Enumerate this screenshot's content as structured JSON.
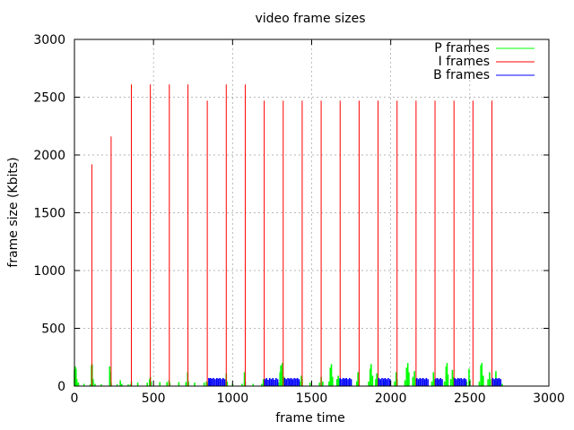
{
  "chart_data": {
    "type": "line",
    "title": "video frame sizes",
    "xlabel": "frame time",
    "ylabel": "frame size (Kbits)",
    "xlim": [
      0,
      3000
    ],
    "ylim": [
      0,
      3000
    ],
    "x_ticks": [
      0,
      500,
      1000,
      1500,
      2000,
      2500,
      3000
    ],
    "y_ticks": [
      0,
      500,
      1000,
      1500,
      2000,
      2500,
      3000
    ],
    "grid": true,
    "legend_position": "top-right",
    "series": [
      {
        "name": "P frames",
        "color": "#00ff00",
        "points": [
          [
            0,
            140
          ],
          [
            5,
            170
          ],
          [
            10,
            150
          ],
          [
            15,
            60
          ],
          [
            25,
            30
          ],
          [
            60,
            20
          ],
          [
            100,
            15
          ],
          [
            108,
            180
          ],
          [
            112,
            190
          ],
          [
            118,
            60
          ],
          [
            130,
            20
          ],
          [
            170,
            15
          ],
          [
            223,
            170
          ],
          [
            227,
            120
          ],
          [
            232,
            30
          ],
          [
            270,
            15
          ],
          [
            290,
            50
          ],
          [
            300,
            20
          ],
          [
            340,
            15
          ],
          [
            355,
            15
          ],
          [
            360,
            40
          ],
          [
            400,
            30
          ],
          [
            460,
            30
          ],
          [
            475,
            60
          ],
          [
            480,
            80
          ],
          [
            485,
            40
          ],
          [
            540,
            35
          ],
          [
            585,
            35
          ],
          [
            598,
            50
          ],
          [
            603,
            30
          ],
          [
            660,
            35
          ],
          [
            705,
            35
          ],
          [
            716,
            120
          ],
          [
            721,
            40
          ],
          [
            760,
            30
          ],
          [
            820,
            30
          ],
          [
            835,
            40
          ],
          [
            840,
            30
          ],
          [
            955,
            25
          ],
          [
            960,
            110
          ],
          [
            966,
            40
          ],
          [
            1000,
            20
          ],
          [
            1060,
            20
          ],
          [
            1075,
            120
          ],
          [
            1080,
            40
          ],
          [
            1130,
            20
          ],
          [
            1185,
            20
          ],
          [
            1195,
            60
          ],
          [
            1200,
            30
          ],
          [
            1290,
            30
          ],
          [
            1300,
            120
          ],
          [
            1305,
            180
          ],
          [
            1315,
            200
          ],
          [
            1325,
            80
          ],
          [
            1360,
            40
          ],
          [
            1425,
            40
          ],
          [
            1435,
            90
          ],
          [
            1440,
            60
          ],
          [
            1490,
            30
          ],
          [
            1550,
            30
          ],
          [
            1560,
            80
          ],
          [
            1570,
            40
          ],
          [
            1610,
            40
          ],
          [
            1618,
            160
          ],
          [
            1625,
            190
          ],
          [
            1632,
            80
          ],
          [
            1660,
            60
          ],
          [
            1668,
            90
          ],
          [
            1672,
            60
          ],
          [
            1700,
            40
          ],
          [
            1785,
            40
          ],
          [
            1793,
            120
          ],
          [
            1798,
            60
          ],
          [
            1860,
            40
          ],
          [
            1870,
            150
          ],
          [
            1876,
            190
          ],
          [
            1885,
            90
          ],
          [
            1905,
            60
          ],
          [
            1912,
            110
          ],
          [
            1916,
            60
          ],
          [
            1960,
            40
          ],
          [
            2025,
            40
          ],
          [
            2035,
            120
          ],
          [
            2040,
            60
          ],
          [
            2090,
            50
          ],
          [
            2100,
            160
          ],
          [
            2108,
            200
          ],
          [
            2115,
            120
          ],
          [
            2140,
            80
          ],
          [
            2150,
            130
          ],
          [
            2160,
            60
          ],
          [
            2260,
            40
          ],
          [
            2270,
            120
          ],
          [
            2275,
            60
          ],
          [
            2340,
            40
          ],
          [
            2350,
            170
          ],
          [
            2356,
            200
          ],
          [
            2362,
            100
          ],
          [
            2380,
            60
          ],
          [
            2390,
            140
          ],
          [
            2396,
            80
          ],
          [
            2480,
            40
          ],
          [
            2495,
            150
          ],
          [
            2500,
            60
          ],
          [
            2560,
            40
          ],
          [
            2570,
            180
          ],
          [
            2576,
            200
          ],
          [
            2585,
            90
          ],
          [
            2615,
            60
          ],
          [
            2625,
            120
          ],
          [
            2630,
            60
          ],
          [
            2665,
            130
          ],
          [
            2670,
            40
          ],
          [
            2705,
            20
          ]
        ]
      },
      {
        "name": "I frames",
        "color": "#ff0000",
        "points": [
          [
            110,
            1920
          ],
          [
            232,
            2160
          ],
          [
            360,
            2610
          ],
          [
            480,
            2610
          ],
          [
            600,
            2610
          ],
          [
            718,
            2610
          ],
          [
            840,
            2470
          ],
          [
            960,
            2610
          ],
          [
            1080,
            2610
          ],
          [
            1200,
            2470
          ],
          [
            1320,
            2470
          ],
          [
            1440,
            2470
          ],
          [
            1560,
            2470
          ],
          [
            1680,
            2470
          ],
          [
            1800,
            2470
          ],
          [
            1920,
            2470
          ],
          [
            2040,
            2470
          ],
          [
            2160,
            2470
          ],
          [
            2280,
            2470
          ],
          [
            2400,
            2470
          ],
          [
            2520,
            2470
          ],
          [
            2640,
            2470
          ]
        ]
      },
      {
        "name": "B frames",
        "color": "#0000ff",
        "points": [
          [
            850,
            70
          ],
          [
            855,
            60
          ],
          [
            860,
            70
          ],
          [
            870,
            65
          ],
          [
            880,
            70
          ],
          [
            890,
            60
          ],
          [
            900,
            70
          ],
          [
            910,
            65
          ],
          [
            920,
            70
          ],
          [
            930,
            60
          ],
          [
            940,
            70
          ],
          [
            950,
            60
          ],
          [
            1205,
            60
          ],
          [
            1215,
            70
          ],
          [
            1225,
            55
          ],
          [
            1235,
            70
          ],
          [
            1245,
            60
          ],
          [
            1255,
            70
          ],
          [
            1265,
            55
          ],
          [
            1275,
            70
          ],
          [
            1285,
            60
          ],
          [
            1330,
            70
          ],
          [
            1340,
            60
          ],
          [
            1350,
            70
          ],
          [
            1360,
            65
          ],
          [
            1370,
            70
          ],
          [
            1380,
            60
          ],
          [
            1390,
            70
          ],
          [
            1400,
            65
          ],
          [
            1410,
            70
          ],
          [
            1420,
            60
          ],
          [
            1680,
            70
          ],
          [
            1690,
            60
          ],
          [
            1700,
            70
          ],
          [
            1710,
            65
          ],
          [
            1720,
            70
          ],
          [
            1730,
            60
          ],
          [
            1740,
            70
          ],
          [
            1750,
            60
          ],
          [
            1925,
            70
          ],
          [
            1935,
            60
          ],
          [
            1945,
            70
          ],
          [
            1955,
            65
          ],
          [
            1965,
            70
          ],
          [
            1975,
            60
          ],
          [
            1985,
            70
          ],
          [
            1995,
            60
          ],
          [
            2165,
            70
          ],
          [
            2175,
            60
          ],
          [
            2185,
            70
          ],
          [
            2195,
            65
          ],
          [
            2205,
            70
          ],
          [
            2215,
            60
          ],
          [
            2225,
            70
          ],
          [
            2235,
            60
          ],
          [
            2285,
            65
          ],
          [
            2295,
            70
          ],
          [
            2305,
            60
          ],
          [
            2315,
            70
          ],
          [
            2325,
            60
          ],
          [
            2405,
            70
          ],
          [
            2415,
            60
          ],
          [
            2425,
            70
          ],
          [
            2435,
            65
          ],
          [
            2445,
            70
          ],
          [
            2455,
            60
          ],
          [
            2465,
            70
          ],
          [
            2475,
            60
          ],
          [
            2645,
            70
          ],
          [
            2655,
            60
          ],
          [
            2665,
            70
          ],
          [
            2675,
            65
          ],
          [
            2685,
            70
          ],
          [
            2695,
            60
          ]
        ]
      }
    ]
  }
}
